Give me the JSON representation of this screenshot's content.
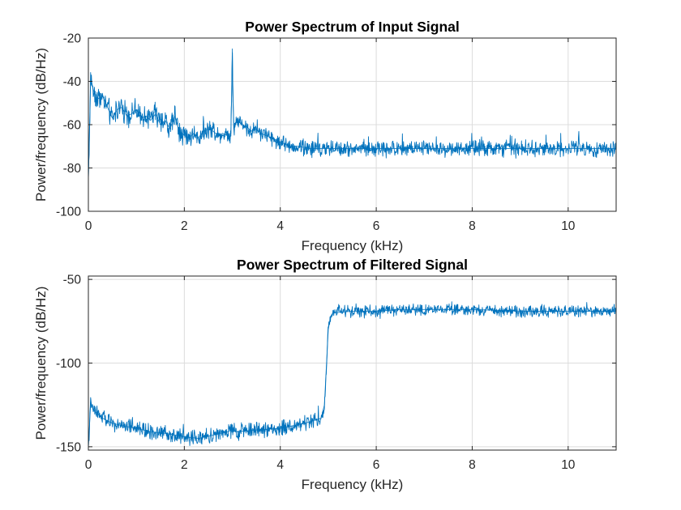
{
  "chart_data": [
    {
      "type": "line",
      "title": "Power Spectrum of Input Signal",
      "xlabel": "Frequency (kHz)",
      "ylabel": "Power/frequency (dB/Hz)",
      "xlim": [
        0,
        11
      ],
      "ylim": [
        -100,
        -20
      ],
      "xticks": [
        0,
        2,
        4,
        6,
        8,
        10
      ],
      "xtick_labels": [
        "0",
        "2",
        "4",
        "6",
        "8",
        "10"
      ],
      "yticks": [
        -100,
        -80,
        -60,
        -40,
        -20
      ],
      "ytick_labels": [
        "-100",
        "-80",
        "-60",
        "-40",
        "-20"
      ],
      "grid": true,
      "color": "#0072BD",
      "series": [
        {
          "x": [
            0.0,
            0.05,
            0.1,
            0.2,
            0.3,
            0.4,
            0.5,
            0.6,
            0.7,
            0.8,
            0.9,
            1.0,
            1.1,
            1.2,
            1.3,
            1.4,
            1.5,
            1.6,
            1.7,
            1.8,
            1.9,
            2.0,
            2.1,
            2.2,
            2.3,
            2.4,
            2.5,
            2.6,
            2.7,
            2.8,
            2.9,
            2.97,
            2.99,
            3.0,
            3.01,
            3.03,
            3.1,
            3.2,
            3.3,
            3.4,
            3.5,
            3.6,
            3.7,
            3.8,
            3.9,
            4.0,
            4.2,
            4.4,
            4.6,
            4.8,
            5.0,
            5.5,
            6.0,
            6.5,
            7.0,
            7.5,
            8.0,
            8.5,
            9.0,
            9.5,
            10.0,
            10.5,
            11.0
          ],
          "values": [
            -85,
            -38,
            -44,
            -48,
            -47,
            -52,
            -57,
            -53,
            -52,
            -56,
            -55,
            -53,
            -57,
            -56,
            -58,
            -55,
            -60,
            -58,
            -62,
            -56,
            -63,
            -65,
            -66,
            -64,
            -66,
            -63,
            -62,
            -63,
            -65,
            -64,
            -65,
            -64,
            -40,
            -25,
            -42,
            -62,
            -58,
            -60,
            -61,
            -63,
            -62,
            -64,
            -65,
            -66,
            -67,
            -68,
            -70,
            -70,
            -71,
            -71,
            -71,
            -71,
            -71,
            -71,
            -71,
            -71,
            -71,
            -71,
            -71,
            -71,
            -71,
            -71,
            -71
          ]
        }
      ]
    },
    {
      "type": "line",
      "title": "Power Spectrum of Filtered Signal",
      "xlabel": "Frequency (kHz)",
      "ylabel": "Power/frequency (dB/Hz)",
      "xlim": [
        0,
        11
      ],
      "ylim": [
        -152,
        -48
      ],
      "xticks": [
        0,
        2,
        4,
        6,
        8,
        10
      ],
      "xtick_labels": [
        "0",
        "2",
        "4",
        "6",
        "8",
        "10"
      ],
      "yticks": [
        -150,
        -100,
        -50
      ],
      "ytick_labels": [
        "-150",
        "-100",
        "-50"
      ],
      "grid": true,
      "color": "#0072BD",
      "series": [
        {
          "x": [
            0.0,
            0.05,
            0.1,
            0.3,
            0.5,
            0.8,
            1.0,
            1.3,
            1.6,
            2.0,
            2.3,
            2.6,
            2.9,
            3.0,
            3.1,
            3.5,
            4.0,
            4.5,
            4.85,
            4.92,
            5.0,
            5.05,
            5.1,
            5.5,
            6.0,
            6.5,
            7.0,
            8.0,
            9.0,
            10.0,
            11.0
          ],
          "values": [
            -150,
            -123,
            -128,
            -133,
            -136,
            -138,
            -139,
            -141,
            -142,
            -144,
            -145,
            -143,
            -141,
            -140,
            -141,
            -140,
            -139,
            -136,
            -133,
            -125,
            -80,
            -72,
            -70,
            -69,
            -69,
            -68,
            -68,
            -68,
            -69,
            -69,
            -69
          ]
        }
      ]
    }
  ]
}
